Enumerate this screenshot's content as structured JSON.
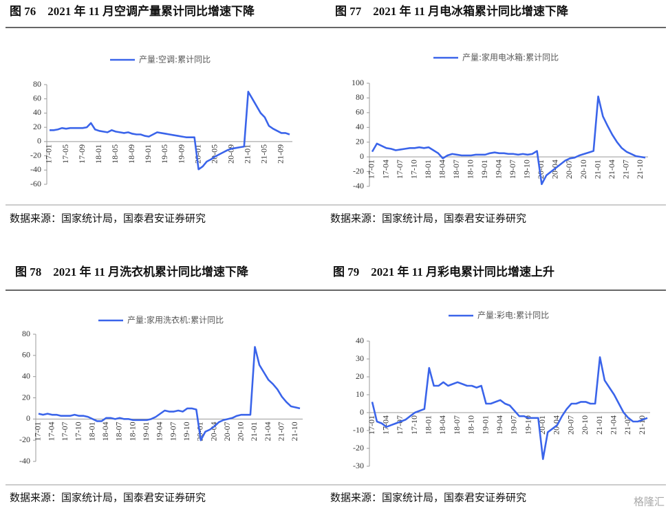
{
  "chart_data": [
    {
      "type": "line",
      "title": "图 76　2021 年 11 月空调产量累计同比增速下降",
      "source": "数据来源：国家统计局，国泰君安证券研究",
      "categories": [
        "17-01",
        null,
        null,
        null,
        "17-05",
        null,
        null,
        null,
        "17-09",
        null,
        null,
        null,
        "18-01",
        null,
        null,
        null,
        "18-05",
        null,
        null,
        null,
        "18-09",
        null,
        null,
        null,
        "19-01",
        null,
        null,
        null,
        "19-05",
        null,
        null,
        null,
        "19-09",
        null,
        null,
        null,
        "20-01",
        null,
        null,
        null,
        "20-05",
        null,
        null,
        null,
        "20-09",
        null,
        null,
        null,
        "21-01",
        null,
        null,
        null,
        "21-05",
        null,
        null,
        null,
        "21-09",
        null,
        null
      ],
      "series": [
        {
          "name": "产量:空调:累计同比",
          "color": "#3a64ea",
          "values": [
            16,
            16,
            17,
            19,
            18,
            19,
            19,
            19,
            19,
            20,
            26,
            17,
            15,
            14,
            13,
            16,
            14,
            13,
            12,
            13,
            11,
            10,
            10,
            8,
            7,
            10,
            13,
            12,
            11,
            10,
            9,
            8,
            7,
            6,
            6,
            6,
            -39,
            -35,
            -28,
            -25,
            -21,
            -18,
            -15,
            -12,
            -10,
            -9,
            -8,
            -7,
            70,
            60,
            50,
            40,
            34,
            22,
            18,
            15,
            12,
            12,
            10
          ]
        }
      ],
      "ylim": [
        -60,
        80
      ],
      "yticks": [
        -60,
        -40,
        -20,
        0,
        20,
        40,
        60,
        80
      ]
    },
    {
      "type": "line",
      "title": "图 77　2021 年 11 月电冰箱累计同比增速下降",
      "source": "数据来源：国家统计局，国泰君安证券研究",
      "categories": [
        "17-01",
        null,
        null,
        "17-04",
        null,
        null,
        "17-07",
        null,
        null,
        "17-10",
        null,
        null,
        "18-01",
        null,
        null,
        "18-04",
        null,
        null,
        "18-07",
        null,
        null,
        "18-10",
        null,
        null,
        "19-01",
        null,
        null,
        "19-04",
        null,
        null,
        "19-07",
        null,
        null,
        "19-10",
        null,
        null,
        "20-01",
        null,
        null,
        "20-04",
        null,
        null,
        "20-07",
        null,
        null,
        "20-10",
        null,
        null,
        "21-01",
        null,
        null,
        "21-04",
        null,
        null,
        "21-07",
        null,
        null,
        "21-10",
        null
      ],
      "series": [
        {
          "name": "产量:家用电冰箱:累计同比",
          "color": "#3a64ea",
          "values": [
            7,
            18,
            15,
            12,
            11,
            9,
            10,
            11,
            12,
            12,
            13,
            12,
            13,
            9,
            5,
            -2,
            2,
            4,
            3,
            2,
            2,
            2,
            3,
            3,
            3,
            5,
            6,
            5,
            5,
            4,
            4,
            3,
            4,
            3,
            4,
            8,
            -37,
            -25,
            -20,
            -15,
            -10,
            -5,
            -2,
            -1,
            2,
            4,
            6,
            8,
            82,
            55,
            42,
            30,
            20,
            12,
            7,
            4,
            1,
            0,
            -1
          ]
        }
      ],
      "ylim": [
        -40,
        100
      ],
      "yticks": [
        -40,
        -20,
        0,
        20,
        40,
        60,
        80,
        100
      ]
    },
    {
      "type": "line",
      "title": "图 78　2021 年 11 月洗衣机累计同比增速下降",
      "source": "数据来源：国家统计局，国泰君安证券研究",
      "categories": [
        "17-01",
        null,
        null,
        "17-04",
        null,
        null,
        "17-07",
        null,
        null,
        "17-10",
        null,
        null,
        "18-01",
        null,
        null,
        "18-04",
        null,
        null,
        "18-07",
        null,
        null,
        "18-10",
        null,
        null,
        "19-01",
        null,
        null,
        "19-04",
        null,
        null,
        "19-07",
        null,
        null,
        "19-10",
        null,
        null,
        "20-01",
        null,
        null,
        "20-04",
        null,
        null,
        "20-07",
        null,
        null,
        "20-10",
        null,
        null,
        "21-01",
        null,
        null,
        "21-04",
        null,
        null,
        "21-07",
        null,
        null,
        "21-10",
        null
      ],
      "series": [
        {
          "name": "产量:家用洗衣机:累计同比",
          "color": "#3a64ea",
          "values": [
            5,
            4,
            5,
            4,
            4,
            3,
            3,
            3,
            4,
            3,
            3,
            2,
            0,
            -2,
            -2,
            1,
            1,
            0,
            1,
            0,
            0,
            -1,
            -1,
            -1,
            -1,
            0,
            2,
            5,
            8,
            7,
            7,
            8,
            7,
            10,
            10,
            9,
            -20,
            -12,
            -10,
            -7,
            -3,
            -1,
            0,
            1,
            3,
            4,
            4,
            4,
            68,
            51,
            44,
            37,
            33,
            28,
            21,
            16,
            12,
            11,
            10
          ]
        }
      ],
      "ylim": [
        -40,
        80
      ],
      "yticks": [
        -40,
        -20,
        0,
        20,
        40,
        60,
        80
      ]
    },
    {
      "type": "line",
      "title": "图 79　2021 年 11 月彩电累计同比增速上升",
      "source": "数据来源：国家统计局，国泰君安证券研究",
      "categories": [
        "17-01",
        null,
        null,
        "17-04",
        null,
        null,
        "17-07",
        null,
        null,
        "17-10",
        null,
        null,
        "18-01",
        null,
        null,
        "18-04",
        null,
        null,
        "18-07",
        null,
        null,
        "18-10",
        null,
        null,
        "19-01",
        null,
        null,
        "19-04",
        null,
        null,
        "19-07",
        null,
        null,
        "19-10",
        null,
        null,
        "20-01",
        null,
        null,
        "20-04",
        null,
        null,
        "20-07",
        null,
        null,
        "20-10",
        null,
        null,
        "21-01",
        null,
        null,
        "21-04",
        null,
        null,
        "21-07",
        null,
        null,
        "21-10",
        null
      ],
      "series": [
        {
          "name": "产量:彩电:累计同比",
          "color": "#3a64ea",
          "values": [
            6,
            -5,
            -6,
            -8,
            -7,
            -6,
            -5,
            -4,
            -2,
            0,
            1,
            2,
            25,
            15,
            15,
            17,
            15,
            16,
            17,
            16,
            15,
            15,
            14,
            15,
            5,
            5,
            6,
            7,
            5,
            4,
            1,
            -2,
            -2,
            -3,
            -3,
            -3,
            -26,
            -11,
            -9,
            -7,
            -2,
            2,
            5,
            5,
            6,
            6,
            5,
            5,
            31,
            18,
            14,
            10,
            5,
            0,
            -3,
            -5,
            -5,
            -4,
            -3
          ]
        }
      ],
      "ylim": [
        -30,
        40
      ],
      "yticks": [
        -30,
        -20,
        -10,
        0,
        10,
        20,
        30,
        40
      ]
    }
  ],
  "watermark": "格隆汇"
}
